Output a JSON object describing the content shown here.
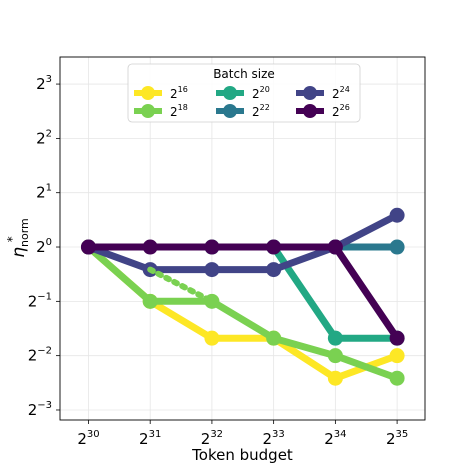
{
  "chart_data": {
    "type": "line",
    "xlabel": "Token budget",
    "ylabel_main": "η",
    "ylabel_sup": "*",
    "ylabel_sub": "norm",
    "x_scale": "log2",
    "y_scale": "log2",
    "x_ticks": [
      {
        "base": "2",
        "exp": "30",
        "value": 1073741824
      },
      {
        "base": "2",
        "exp": "31",
        "value": 2147483648
      },
      {
        "base": "2",
        "exp": "32",
        "value": 4294967296
      },
      {
        "base": "2",
        "exp": "33",
        "value": 8589934592
      },
      {
        "base": "2",
        "exp": "34",
        "value": 17179869184
      },
      {
        "base": "2",
        "exp": "35",
        "value": 34359738368
      }
    ],
    "y_ticks": [
      {
        "base": "2",
        "exp": "3",
        "value": 8
      },
      {
        "base": "2",
        "exp": "2",
        "value": 4
      },
      {
        "base": "2",
        "exp": "1",
        "value": 2
      },
      {
        "base": "2",
        "exp": "0",
        "value": 1
      },
      {
        "base": "2",
        "exp": "−1",
        "value": 0.5
      },
      {
        "base": "2",
        "exp": "−2",
        "value": 0.25
      },
      {
        "base": "2",
        "exp": "−3",
        "value": 0.125
      }
    ],
    "xlim": [
      780000000,
      47000000000
    ],
    "ylim": [
      0.11,
      11.3
    ],
    "grid": true,
    "legend": {
      "title": "Batch size",
      "position": "top-center",
      "ncol": 3
    },
    "series": [
      {
        "name_base": "2",
        "name_exp": "16",
        "color": "#fde725",
        "x": [
          1073741824,
          2147483648,
          4294967296,
          8589934592,
          17179869184,
          34359738368
        ],
        "y": [
          1,
          0.5,
          0.3125,
          0.3125,
          0.1875,
          0.25
        ]
      },
      {
        "name_base": "2",
        "name_exp": "18",
        "color": "#7ad151",
        "x": [
          1073741824,
          2147483648,
          4294967296,
          8589934592,
          17179869184,
          34359738368
        ],
        "y": [
          1,
          0.5,
          0.5,
          0.3125,
          0.25,
          0.1875
        ]
      },
      {
        "name_base": "2",
        "name_exp": "20",
        "color": "#22a884",
        "x": [
          4294967296,
          8589934592,
          17179869184,
          34359738368
        ],
        "y": [
          1,
          1,
          0.3125,
          0.3125
        ]
      },
      {
        "name_base": "2",
        "name_exp": "22",
        "color": "#2a788e",
        "x": [
          17179869184,
          34359738368
        ],
        "y": [
          1,
          1
        ]
      },
      {
        "name_base": "2",
        "name_exp": "24",
        "color": "#414487",
        "x": [
          1073741824,
          2147483648,
          4294967296,
          8589934592,
          17179869184,
          34359738368
        ],
        "y": [
          1,
          0.75,
          0.75,
          0.75,
          1,
          1.5
        ]
      },
      {
        "name_base": "2",
        "name_exp": "26",
        "color": "#440154",
        "x": [
          1073741824,
          2147483648,
          4294967296,
          8589934592,
          17179869184,
          34359738368
        ],
        "y": [
          1,
          1,
          1,
          1,
          1,
          0.3125
        ]
      }
    ],
    "extra_lines": [
      {
        "color": "#7ad151",
        "style": "dotted",
        "x": [
          2147483648,
          4294967296
        ],
        "y": [
          0.75,
          0.5
        ]
      }
    ]
  }
}
